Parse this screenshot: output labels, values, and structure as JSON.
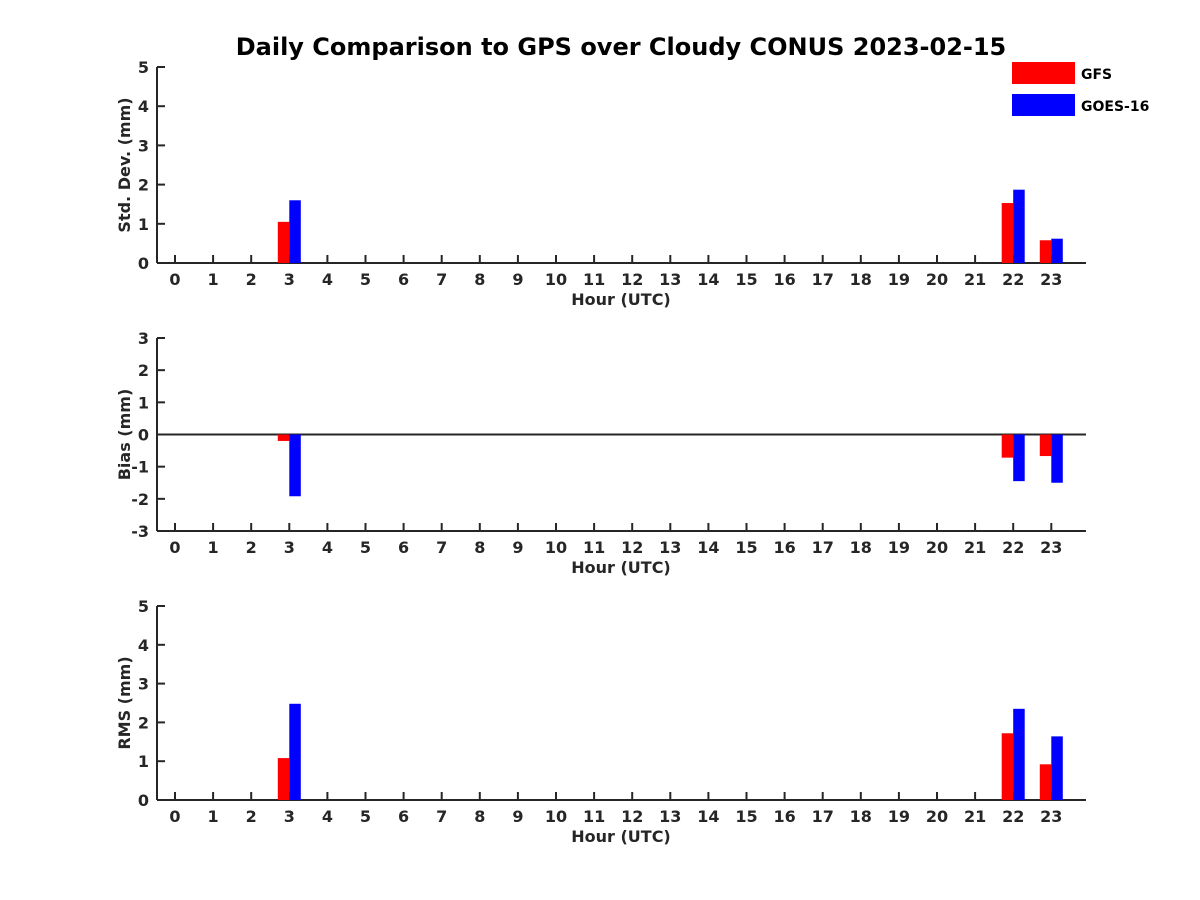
{
  "chart_data": {
    "type": "bar",
    "title": "Daily Comparison to GPS over Cloudy CONUS 2023-02-15",
    "colors": {
      "GFS": "#ff0000",
      "GOES-16": "#0000ff",
      "axis": "#262626"
    },
    "legend": {
      "placement": "top-right",
      "entries": [
        {
          "name": "GFS",
          "color": "#ff0000"
        },
        {
          "name": "GOES-16",
          "color": "#0000ff"
        }
      ]
    },
    "panels": [
      {
        "id": "std",
        "ylabel": "Std. Dev. (mm)",
        "xlabel": "Hour (UTC)",
        "ylim": [
          0,
          5
        ],
        "yticks": [
          "0",
          "1",
          "2",
          "3",
          "4",
          "5"
        ],
        "categories": [
          "0",
          "1",
          "2",
          "3",
          "4",
          "5",
          "6",
          "7",
          "8",
          "9",
          "10",
          "11",
          "12",
          "13",
          "14",
          "15",
          "16",
          "17",
          "18",
          "19",
          "20",
          "21",
          "22",
          "23"
        ],
        "series": [
          {
            "name": "GFS",
            "values": [
              null,
              null,
              null,
              1.05,
              null,
              null,
              null,
              null,
              null,
              null,
              null,
              null,
              null,
              null,
              null,
              null,
              null,
              null,
              null,
              null,
              null,
              null,
              1.53,
              0.58
            ]
          },
          {
            "name": "GOES-16",
            "values": [
              null,
              null,
              null,
              1.6,
              null,
              null,
              null,
              null,
              null,
              null,
              null,
              null,
              null,
              null,
              null,
              null,
              null,
              null,
              null,
              null,
              null,
              null,
              1.87,
              0.62
            ]
          }
        ]
      },
      {
        "id": "bias",
        "ylabel": "Bias (mm)",
        "xlabel": "Hour (UTC)",
        "ylim": [
          -3,
          3
        ],
        "yticks": [
          "-3",
          "-2",
          "-1",
          "0",
          "1",
          "2",
          "3"
        ],
        "categories": [
          "0",
          "1",
          "2",
          "3",
          "4",
          "5",
          "6",
          "7",
          "8",
          "9",
          "10",
          "11",
          "12",
          "13",
          "14",
          "15",
          "16",
          "17",
          "18",
          "19",
          "20",
          "21",
          "22",
          "23"
        ],
        "series": [
          {
            "name": "GFS",
            "values": [
              null,
              null,
              null,
              -0.2,
              null,
              null,
              null,
              null,
              null,
              null,
              null,
              null,
              null,
              null,
              null,
              null,
              null,
              null,
              null,
              null,
              null,
              null,
              -0.72,
              -0.67
            ]
          },
          {
            "name": "GOES-16",
            "values": [
              null,
              null,
              null,
              -1.92,
              null,
              null,
              null,
              null,
              null,
              null,
              null,
              null,
              null,
              null,
              null,
              null,
              null,
              null,
              null,
              null,
              null,
              null,
              -1.45,
              -1.5
            ]
          }
        ]
      },
      {
        "id": "rms",
        "ylabel": "RMS (mm)",
        "xlabel": "Hour (UTC)",
        "ylim": [
          0,
          5
        ],
        "yticks": [
          "0",
          "1",
          "2",
          "3",
          "4",
          "5"
        ],
        "categories": [
          "0",
          "1",
          "2",
          "3",
          "4",
          "5",
          "6",
          "7",
          "8",
          "9",
          "10",
          "11",
          "12",
          "13",
          "14",
          "15",
          "16",
          "17",
          "18",
          "19",
          "20",
          "21",
          "22",
          "23"
        ],
        "series": [
          {
            "name": "GFS",
            "values": [
              null,
              null,
              null,
              1.08,
              null,
              null,
              null,
              null,
              null,
              null,
              null,
              null,
              null,
              null,
              null,
              null,
              null,
              null,
              null,
              null,
              null,
              null,
              1.72,
              0.92
            ]
          },
          {
            "name": "GOES-16",
            "values": [
              null,
              null,
              null,
              2.48,
              null,
              null,
              null,
              null,
              null,
              null,
              null,
              null,
              null,
              null,
              null,
              null,
              null,
              null,
              null,
              null,
              null,
              null,
              2.35,
              1.64
            ]
          }
        ]
      }
    ]
  }
}
